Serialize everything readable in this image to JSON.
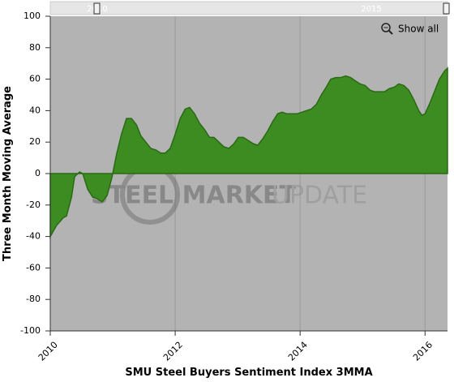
{
  "chart_data": {
    "type": "area",
    "x_label": "SMU Steel Buyers Sentiment Index 3MMA",
    "y_label": "Three Month Moving Average",
    "watermark": [
      "STEEL MARKET",
      "UPDATE"
    ],
    "navigator_labels": [
      "2010",
      "2015"
    ],
    "button": "Show all",
    "color": "#3c8c22",
    "xlim": [
      2010,
      2016.36
    ],
    "xticks": [
      2010,
      2012,
      2014,
      2016
    ],
    "ylim": [
      -100,
      100
    ],
    "yticks": [
      -100,
      -80,
      -60,
      -40,
      -20,
      0,
      20,
      40,
      60,
      80,
      100
    ],
    "grid": true,
    "x": [
      2010.0,
      2010.1,
      2010.21,
      2010.26,
      2010.34,
      2010.39,
      2010.47,
      2010.52,
      2010.6,
      2010.68,
      2010.75,
      2010.83,
      2010.91,
      2010.99,
      2011.06,
      2011.14,
      2011.22,
      2011.3,
      2011.38,
      2011.45,
      2011.53,
      2011.61,
      2011.69,
      2011.77,
      2011.84,
      2011.92,
      2012.0,
      2012.08,
      2012.16,
      2012.23,
      2012.31,
      2012.39,
      2012.47,
      2012.55,
      2012.62,
      2012.7,
      2012.78,
      2012.86,
      2012.94,
      2013.01,
      2013.09,
      2013.17,
      2013.25,
      2013.32,
      2013.4,
      2013.48,
      2013.56,
      2013.64,
      2013.71,
      2013.79,
      2013.87,
      2013.95,
      2014.03,
      2014.1,
      2014.18,
      2014.26,
      2014.34,
      2014.42,
      2014.49,
      2014.57,
      2014.65,
      2014.73,
      2014.81,
      2014.88,
      2014.96,
      2015.04,
      2015.12,
      2015.19,
      2015.27,
      2015.35,
      2015.43,
      2015.51,
      2015.58,
      2015.66,
      2015.74,
      2015.82,
      2015.9,
      2015.95,
      2016.0,
      2016.08,
      2016.16,
      2016.23,
      2016.31,
      2016.36
    ],
    "values": [
      -40,
      -33,
      -28,
      -27,
      -15,
      -2,
      1,
      0,
      -10,
      -15,
      -16,
      -18,
      -14,
      -2,
      12,
      25,
      35,
      35,
      31,
      24,
      20,
      16,
      15,
      13,
      13,
      16,
      25,
      35,
      41,
      42,
      38,
      32,
      28,
      23,
      23,
      20,
      17,
      16,
      19,
      23,
      23,
      21,
      19,
      18,
      22,
      27,
      33,
      38,
      39,
      38,
      38,
      38,
      39,
      40,
      41,
      44,
      50,
      55,
      60,
      61,
      61,
      62,
      61,
      59,
      57,
      56,
      53,
      52,
      52,
      52,
      54,
      55,
      57,
      56,
      53,
      47,
      40,
      37,
      38,
      45,
      53,
      60,
      65,
      67
    ]
  }
}
